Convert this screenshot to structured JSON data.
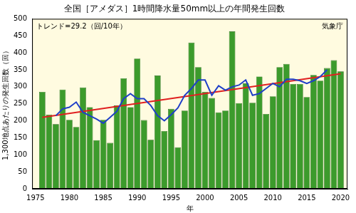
{
  "chart_data": {
    "type": "bar",
    "title": "全国［アメダス］1時間降水量50mm以上の年間発生回数",
    "x_label": "年",
    "y_label": "1,300地点あたりの発生回数（回）",
    "annotations": [
      "トレンド=29.2（回/10年）",
      "気象庁"
    ],
    "x": [
      1976,
      1977,
      1978,
      1979,
      1980,
      1981,
      1982,
      1983,
      1984,
      1985,
      1986,
      1987,
      1988,
      1989,
      1990,
      1991,
      1992,
      1993,
      1994,
      1995,
      1996,
      1997,
      1998,
      1999,
      2000,
      2001,
      2002,
      2003,
      2004,
      2005,
      2006,
      2007,
      2008,
      2009,
      2010,
      2011,
      2012,
      2013,
      2014,
      2015,
      2016,
      2017,
      2018,
      2019,
      2020
    ],
    "series": [
      {
        "type": "bar",
        "color": "#3c9b2c",
        "values": [
          285,
          218,
          190,
          292,
          203,
          182,
          298,
          240,
          143,
          203,
          135,
          245,
          325,
          240,
          383,
          202,
          144,
          333,
          170,
          235,
          122,
          230,
          430,
          358,
          285,
          267,
          225,
          230,
          463,
          252,
          310,
          253,
          330,
          220,
          272,
          358,
          367,
          308,
          308,
          270,
          335,
          318,
          355,
          378,
          345
        ]
      },
      {
        "type": "line",
        "color": "#1f3fc8",
        "values": [
          null,
          null,
          215,
          235,
          240,
          255,
          225,
          215,
          205,
          193,
          210,
          228,
          265,
          280,
          265,
          265,
          245,
          215,
          200,
          218,
          238,
          275,
          295,
          320,
          320,
          275,
          303,
          290,
          300,
          305,
          320,
          275,
          280,
          295,
          310,
          300,
          322,
          322,
          318,
          310,
          318,
          330,
          350,
          null,
          null
        ]
      },
      {
        "type": "line",
        "color": "#e02020",
        "x": [
          1976,
          2020
        ],
        "values": [
          210,
          338.5
        ]
      }
    ],
    "xlim": [
      1974.5,
      2021
    ],
    "xticks": [
      1975,
      1980,
      1985,
      1990,
      1995,
      2000,
      2005,
      2010,
      2015,
      2020
    ],
    "ylim": [
      0,
      500
    ],
    "yticks": [
      0,
      50,
      100,
      150,
      200,
      250,
      300,
      350,
      400,
      450,
      500
    ],
    "grid": false
  }
}
